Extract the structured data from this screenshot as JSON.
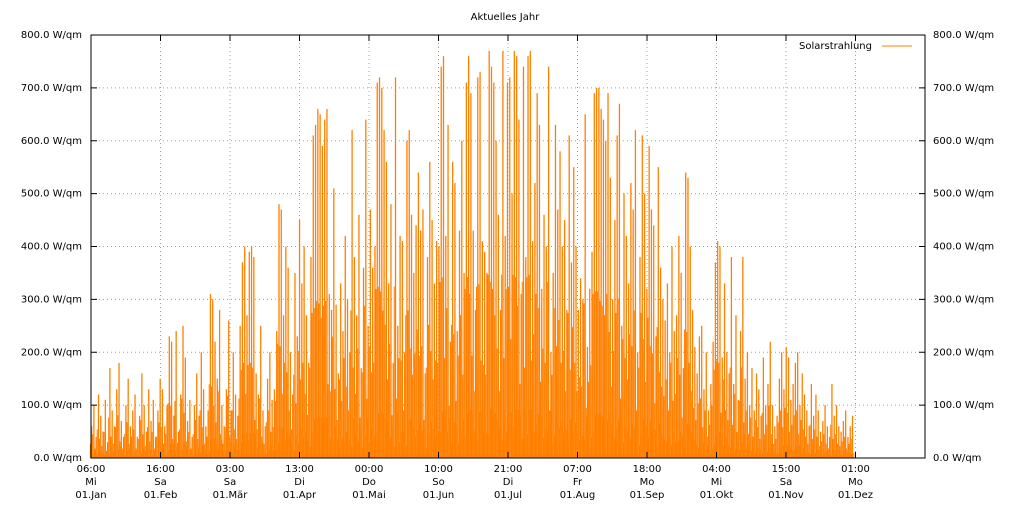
{
  "chart_data": {
    "type": "bar",
    "title": "Aktuelles Jahr",
    "xlabel": "",
    "ylabel": "",
    "unit": "W/qm",
    "ylim": [
      0,
      800
    ],
    "yticks": [
      "0.0 W/qm",
      "100.0 W/qm",
      "200.0 W/qm",
      "300.0 W/qm",
      "400.0 W/qm",
      "500.0 W/qm",
      "600.0 W/qm",
      "700.0 W/qm",
      "800.0 W/qm"
    ],
    "xticks": [
      [
        "06:00",
        "Mi",
        "01.Jan"
      ],
      [
        "16:00",
        "Sa",
        "01.Feb"
      ],
      [
        "03:00",
        "Sa",
        "01.Mär"
      ],
      [
        "13:00",
        "Di",
        "01.Apr"
      ],
      [
        "00:00",
        "Do",
        "01.Mai"
      ],
      [
        "10:00",
        "So",
        "01.Jun"
      ],
      [
        "21:00",
        "Di",
        "01.Jul"
      ],
      [
        "07:00",
        "Fr",
        "01.Aug"
      ],
      [
        "18:00",
        "Mo",
        "01.Sep"
      ],
      [
        "04:00",
        "Mi",
        "01.Okt"
      ],
      [
        "15:00",
        "Sa",
        "01.Nov"
      ],
      [
        "01:00",
        "Mo",
        "01.Dez"
      ]
    ],
    "grid": true,
    "legend_placement": "top-right",
    "series": [
      {
        "name": "Solarstrahlung",
        "color": "#ff8000",
        "daily_peak_values": [
          60,
          100,
          40,
          120,
          80,
          50,
          110,
          30,
          170,
          90,
          60,
          130,
          180,
          70,
          40,
          100,
          150,
          60,
          90,
          120,
          40,
          80,
          160,
          100,
          50,
          130,
          70,
          110,
          40,
          90,
          150,
          130,
          60,
          100,
          230,
          220,
          80,
          240,
          50,
          120,
          250,
          190,
          70,
          110,
          40,
          100,
          160,
          80,
          200,
          130,
          60,
          90,
          310,
          300,
          220,
          150,
          280,
          100,
          60,
          130,
          260,
          90,
          200,
          120,
          80,
          250,
          370,
          400,
          270,
          390,
          400,
          380,
          160,
          120,
          250,
          90,
          60,
          150,
          200,
          110,
          130,
          240,
          480,
          470,
          270,
          400,
          360,
          200,
          120,
          350,
          230,
          450,
          330,
          400,
          270,
          180,
          380,
          610,
          630,
          660,
          650,
          590,
          640,
          660,
          310,
          280,
          510,
          290,
          160,
          330,
          240,
          420,
          300,
          200,
          620,
          380,
          270,
          460,
          170,
          360,
          640,
          250,
          470,
          360,
          400,
          710,
          720,
          700,
          620,
          560,
          330,
          480,
          180,
          720,
          250,
          420,
          410,
          200,
          600,
          620,
          460,
          350,
          440,
          540,
          430,
          470,
          160,
          380,
          560,
          450,
          330,
          410,
          400,
          740,
          760,
          420,
          630,
          220,
          560,
          520,
          240,
          430,
          600,
          350,
          710,
          760,
          690,
          430,
          280,
          720,
          730,
          410,
          390,
          350,
          770,
          740,
          710,
          600,
          460,
          280,
          770,
          420,
          710,
          720,
          500,
          770,
          760,
          640,
          310,
          740,
          380,
          760,
          770,
          410,
          520,
          690,
          630,
          320,
          460,
          400,
          740,
          200,
          350,
          630,
          470,
          580,
          400,
          450,
          280,
          610,
          370,
          550,
          400,
          280,
          340,
          300,
          650,
          210,
          320,
          390,
          690,
          700,
          700,
          660,
          640,
          600,
          690,
          530,
          300,
          450,
          610,
          670,
          250,
          500,
          420,
          330,
          520,
          470,
          620,
          200,
          380,
          610,
          500,
          320,
          590,
          470,
          440,
          230,
          550,
          360,
          300,
          260,
          330,
          200,
          400,
          240,
          270,
          420,
          350,
          170,
          540,
          530,
          400,
          280,
          210,
          160,
          230,
          250,
          130,
          200,
          90,
          140,
          220,
          370,
          410,
          400,
          190,
          330,
          200,
          160,
          380,
          140,
          270,
          110,
          240,
          380,
          150,
          200,
          100,
          170,
          90,
          160,
          130,
          80,
          190,
          100,
          140,
          220,
          100,
          60,
          80,
          150,
          200,
          130,
          210,
          190,
          110,
          140,
          180,
          200,
          100,
          160,
          120,
          90,
          60,
          140,
          80,
          120,
          90,
          50,
          70,
          100,
          60,
          40,
          140,
          80,
          100,
          60,
          50,
          70,
          90,
          40,
          60,
          80
        ]
      }
    ]
  }
}
